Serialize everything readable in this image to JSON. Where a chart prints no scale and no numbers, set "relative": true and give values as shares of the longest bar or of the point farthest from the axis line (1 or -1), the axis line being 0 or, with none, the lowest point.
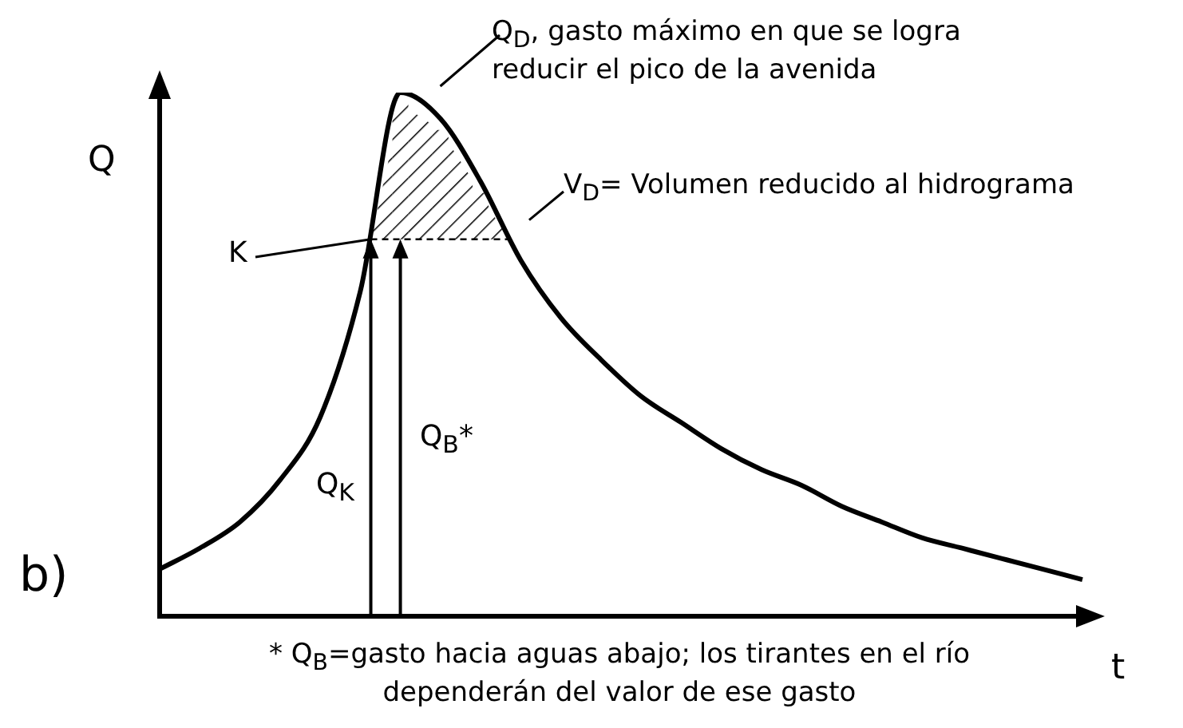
{
  "chart_data": {
    "type": "line",
    "relative": true,
    "xlabel": "t",
    "ylabel": "Q",
    "categories": [
      null,
      null,
      null,
      null,
      null,
      null,
      null,
      null,
      null,
      null,
      null,
      null,
      null,
      null,
      null,
      null,
      null,
      null,
      null,
      null,
      null,
      null,
      null,
      null
    ],
    "series": [
      {
        "color": "#000000",
        "values": [
          0.09,
          0.13,
          0.18,
          0.26,
          0.38,
          0.62,
          1.0,
          0.95,
          0.83,
          0.68,
          0.57,
          0.49,
          0.42,
          0.37,
          0.32,
          0.28,
          0.25,
          0.21,
          0.18,
          0.15,
          0.13,
          0.11,
          0.09,
          0.07
        ]
      }
    ],
    "annotations": [
      "Q$_{D}$, gasto máximo en que se logra reducir el pico de la avenida",
      "V$_{D}$= Volumen reducido al hidrograma",
      "K",
      "Q$_{K}$",
      "Q$_{B}$*",
      "b)",
      "* Q$_{B}$=gasto hacia aguas abajo; los tirantes en el río dependerán del valor de ese gasto"
    ],
    "marker": "none",
    "line_style": "solid",
    "grid": false,
    "legend": false
  }
}
